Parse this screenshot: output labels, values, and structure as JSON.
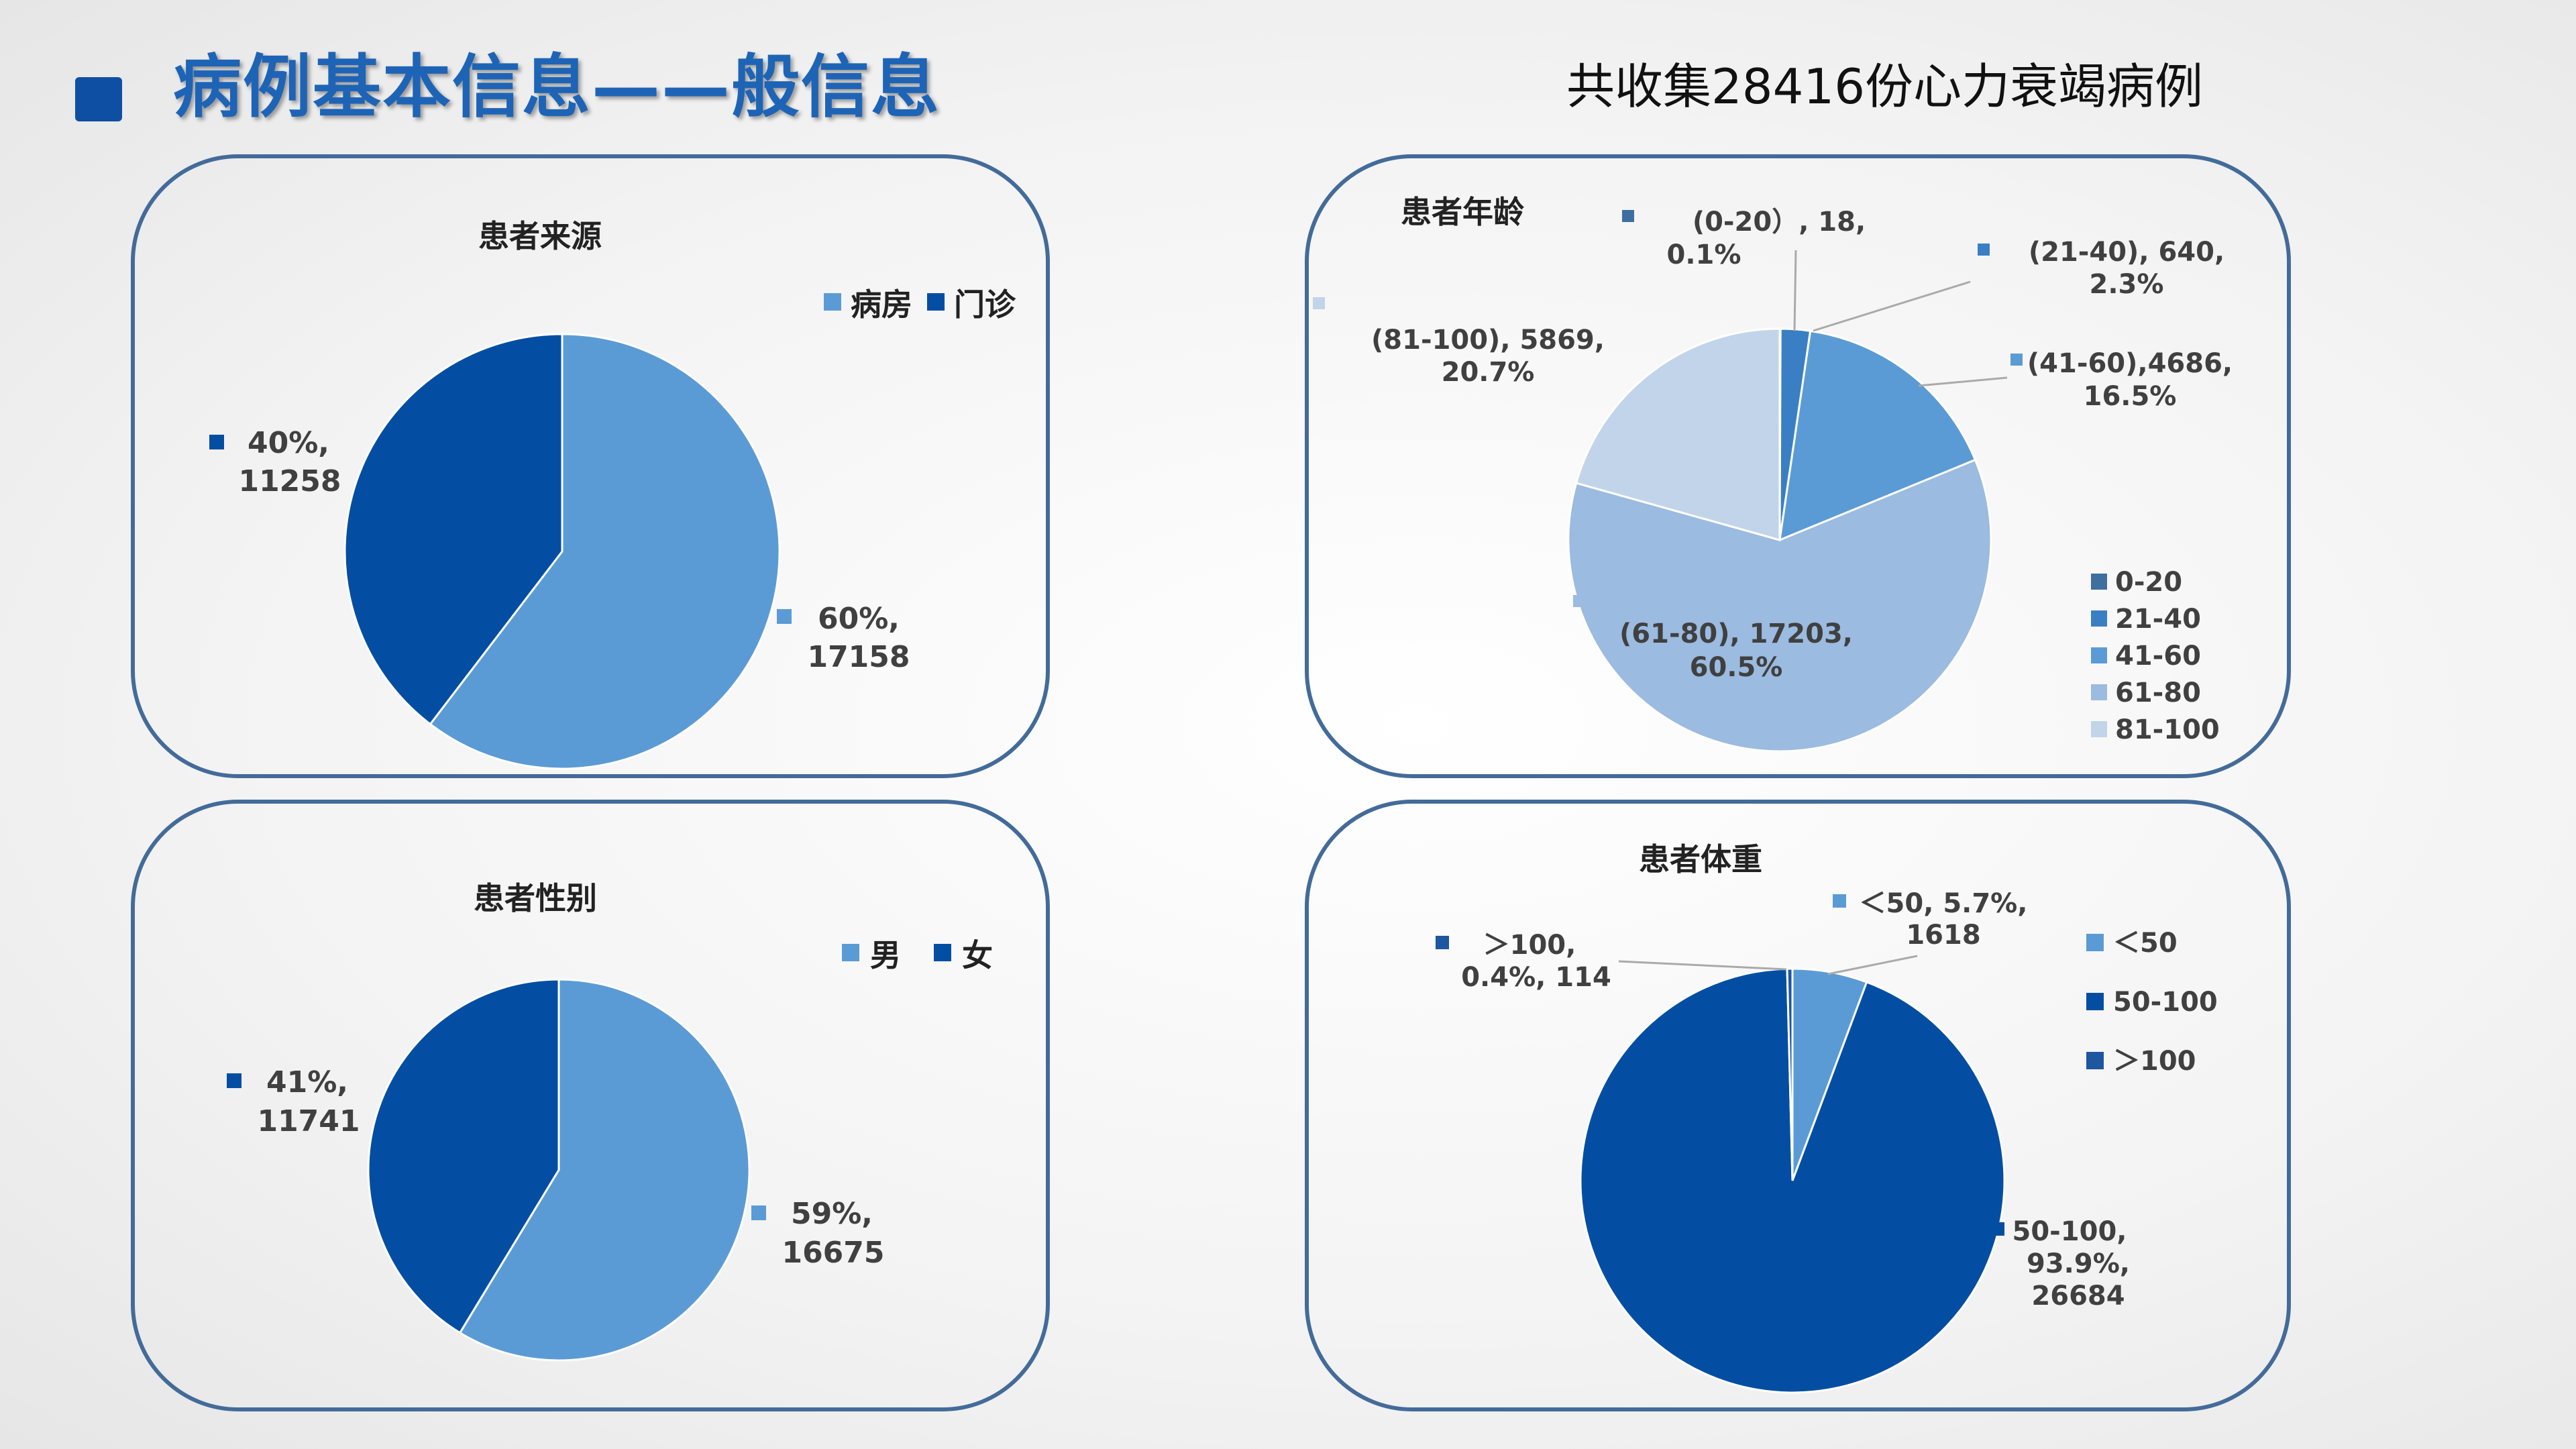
{
  "page": {
    "title": "病例基本信息——般信息",
    "summary": "共收集28416份心力衰竭病例"
  },
  "chart_data": [
    {
      "type": "pie",
      "title": "患者来源",
      "legend_position": "top-right",
      "categories": [
        "病房",
        "门诊"
      ],
      "values": [
        17158,
        11258
      ],
      "percents": [
        "60%",
        "40%"
      ],
      "colors": [
        "#5b9bd5",
        "#034ea2"
      ],
      "data_labels": [
        {
          "line1": "60%,",
          "line2": "17158"
        },
        {
          "line1": "40%,",
          "line2": "11258"
        }
      ]
    },
    {
      "type": "pie",
      "title": "患者年龄",
      "legend_position": "right",
      "categories": [
        "0-20",
        "21-40",
        "41-60",
        "61-80",
        "81-100"
      ],
      "values": [
        18,
        640,
        4686,
        17203,
        5869
      ],
      "percents": [
        "0.1%",
        "2.3%",
        "16.5%",
        "60.5%",
        "20.7%"
      ],
      "colors": [
        "#3f6f9f",
        "#3a7fc4",
        "#5b9bd5",
        "#9bbbe0",
        "#c2d4ea"
      ],
      "data_labels": [
        {
          "line1": "(0-20）, 18,",
          "line2": "0.1%"
        },
        {
          "line1": "(21-40), 640,",
          "line2": "2.3%"
        },
        {
          "line1": "(41-60),4686,",
          "line2": "16.5%"
        },
        {
          "line1": "(61-80), 17203,",
          "line2": "60.5%"
        },
        {
          "line1": "(81-100), 5869,",
          "line2": "20.7%"
        }
      ]
    },
    {
      "type": "pie",
      "title": "患者性别",
      "legend_position": "top-right",
      "categories": [
        "男",
        "女"
      ],
      "values": [
        16675,
        11741
      ],
      "percents": [
        "59%",
        "41%"
      ],
      "colors": [
        "#5b9bd5",
        "#034ea2"
      ],
      "data_labels": [
        {
          "line1": "59%,",
          "line2": "16675"
        },
        {
          "line1": "41%,",
          "line2": "11741"
        }
      ]
    },
    {
      "type": "pie",
      "title": "患者体重",
      "legend_position": "right",
      "categories": [
        "＜50",
        "50-100",
        "＞100"
      ],
      "values": [
        1618,
        26684,
        114
      ],
      "percents": [
        "5.7%",
        "93.9%",
        "0.4%"
      ],
      "colors": [
        "#5b9bd5",
        "#034ea2",
        "#1e56a0"
      ],
      "data_labels": [
        {
          "line1": "＜50, 5.7%,",
          "line2": "1618"
        },
        {
          "line1": "50-100,",
          "line2": "93.9%,",
          "line3": "26684"
        },
        {
          "line1": "＞100,",
          "line2": "0.4%, 114"
        }
      ]
    }
  ]
}
